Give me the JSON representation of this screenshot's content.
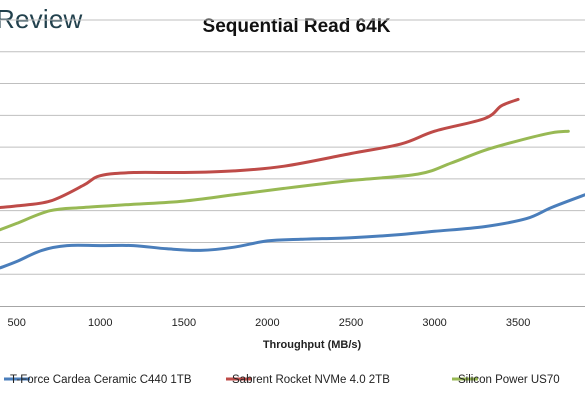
{
  "brand": {
    "logo_text": "Review"
  },
  "chart_data": {
    "type": "line",
    "title": "Sequential Read 64K",
    "xlabel": "Throughput (MB/s)",
    "ylabel": "",
    "xlim": [
      400,
      3900
    ],
    "ylim": [
      0,
      9
    ],
    "x_ticks": [
      500,
      1000,
      1500,
      2000,
      2500,
      3000,
      3500
    ],
    "y_gridlines": [
      1,
      2,
      3,
      4,
      5,
      6,
      7,
      8,
      9
    ],
    "grid": "horizontal",
    "legend_position": "bottom",
    "series": [
      {
        "name": "T-Force Cardea Ceramic C440 1TB",
        "color": "#4a7ebb",
        "points": [
          [
            400,
            1.2
          ],
          [
            500,
            1.4
          ],
          [
            650,
            1.75
          ],
          [
            800,
            1.9
          ],
          [
            1000,
            1.9
          ],
          [
            1200,
            1.9
          ],
          [
            1400,
            1.8
          ],
          [
            1600,
            1.75
          ],
          [
            1800,
            1.85
          ],
          [
            2000,
            2.05
          ],
          [
            2200,
            2.1
          ],
          [
            2500,
            2.15
          ],
          [
            2800,
            2.25
          ],
          [
            3000,
            2.35
          ],
          [
            3300,
            2.5
          ],
          [
            3550,
            2.75
          ],
          [
            3700,
            3.1
          ],
          [
            3900,
            3.5
          ]
        ]
      },
      {
        "name": "Sabrent Rocket NVMe 4.0 2TB",
        "color": "#be4b48",
        "points": [
          [
            400,
            3.1
          ],
          [
            500,
            3.15
          ],
          [
            700,
            3.3
          ],
          [
            900,
            3.8
          ],
          [
            1000,
            4.1
          ],
          [
            1200,
            4.2
          ],
          [
            1500,
            4.2
          ],
          [
            1800,
            4.25
          ],
          [
            2100,
            4.4
          ],
          [
            2500,
            4.8
          ],
          [
            2800,
            5.1
          ],
          [
            3000,
            5.5
          ],
          [
            3300,
            5.9
          ],
          [
            3400,
            6.3
          ],
          [
            3500,
            6.5
          ]
        ]
      },
      {
        "name": "Silicon Power US70",
        "color": "#98b954",
        "points": [
          [
            400,
            2.4
          ],
          [
            500,
            2.6
          ],
          [
            700,
            3.0
          ],
          [
            900,
            3.1
          ],
          [
            1200,
            3.2
          ],
          [
            1500,
            3.3
          ],
          [
            1800,
            3.5
          ],
          [
            2100,
            3.7
          ],
          [
            2500,
            3.95
          ],
          [
            2900,
            4.15
          ],
          [
            3100,
            4.5
          ],
          [
            3300,
            4.9
          ],
          [
            3500,
            5.2
          ],
          [
            3700,
            5.45
          ],
          [
            3800,
            5.5
          ]
        ]
      }
    ]
  }
}
